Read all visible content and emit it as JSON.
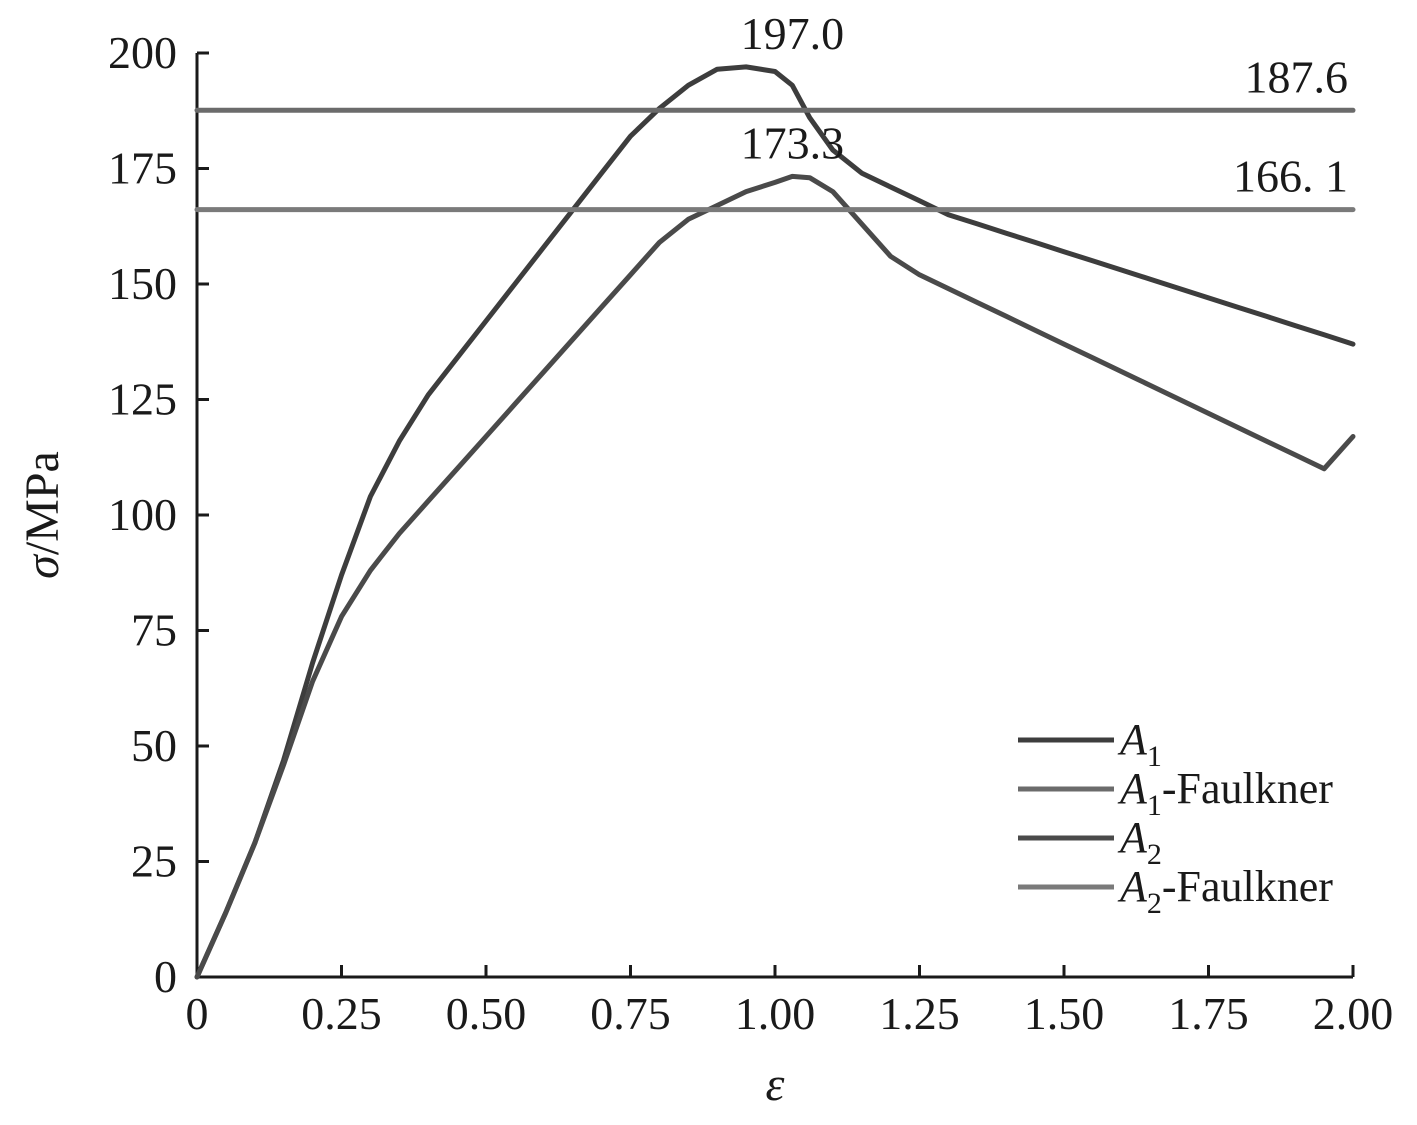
{
  "chart_data": {
    "type": "line",
    "xlabel": "ε",
    "ylabel": "σ/MPa",
    "xlim": [
      0,
      2.0
    ],
    "ylim": [
      0,
      200
    ],
    "x_ticks": [
      0,
      0.25,
      0.5,
      0.75,
      1.0,
      1.25,
      1.5,
      1.75,
      2.0
    ],
    "x_tick_labels": [
      "0",
      "0.25",
      "0.50",
      "0.75",
      "1.00",
      "1.25",
      "1.50",
      "1.75",
      "2.00"
    ],
    "y_ticks": [
      0,
      25,
      50,
      75,
      100,
      125,
      150,
      175,
      200
    ],
    "y_tick_labels": [
      "0",
      "25",
      "50",
      "75",
      "100",
      "125",
      "150",
      "175",
      "200"
    ],
    "grid": false,
    "legend_position": "bottom-right",
    "series": [
      {
        "name": "A1",
        "name_main": "A",
        "name_sub": "1",
        "name_suffix": "",
        "color": "#3d3d3d",
        "x": [
          0,
          0.05,
          0.1,
          0.15,
          0.2,
          0.25,
          0.3,
          0.35,
          0.4,
          0.45,
          0.5,
          0.55,
          0.6,
          0.65,
          0.7,
          0.75,
          0.8,
          0.85,
          0.9,
          0.95,
          1.0,
          1.03,
          1.06,
          1.1,
          1.15,
          1.2,
          1.25,
          1.3,
          1.35,
          1.4,
          1.45,
          1.5,
          1.55,
          1.6,
          1.65,
          1.7,
          1.75,
          1.8,
          1.85,
          1.9,
          1.95,
          2.0
        ],
        "y": [
          0,
          14,
          29,
          47,
          68,
          87,
          104,
          116,
          126,
          134,
          142,
          150,
          158,
          166,
          174,
          182,
          188,
          193,
          196.5,
          197,
          196,
          193,
          186,
          179,
          174,
          171,
          168,
          165,
          163,
          161,
          159,
          157,
          155,
          153,
          151,
          149,
          147,
          145,
          143,
          141,
          139,
          137
        ]
      },
      {
        "name": "A1-Faulkner",
        "name_main": "A",
        "name_sub": "1",
        "name_suffix": "-Faulkner",
        "color": "#6b6b6b",
        "x": [
          0,
          2.0
        ],
        "y": [
          187.6,
          187.6
        ]
      },
      {
        "name": "A2",
        "name_main": "A",
        "name_sub": "2",
        "name_suffix": "",
        "color": "#4a4a4a",
        "x": [
          0,
          0.05,
          0.1,
          0.15,
          0.2,
          0.25,
          0.3,
          0.35,
          0.4,
          0.45,
          0.5,
          0.55,
          0.6,
          0.65,
          0.7,
          0.75,
          0.8,
          0.85,
          0.9,
          0.95,
          1.0,
          1.03,
          1.06,
          1.1,
          1.15,
          1.2,
          1.25,
          1.3,
          1.35,
          1.4,
          1.45,
          1.5,
          1.55,
          1.6,
          1.65,
          1.7,
          1.75,
          1.8,
          1.85,
          1.9,
          1.95,
          2.0
        ],
        "y": [
          0,
          14,
          29,
          46,
          64,
          78,
          88,
          96,
          103,
          110,
          117,
          124,
          131,
          138,
          145,
          152,
          159,
          164,
          167,
          170,
          172,
          173.3,
          173,
          170,
          163,
          156,
          152,
          149,
          146,
          143,
          140,
          137,
          134,
          131,
          128,
          125,
          122,
          119,
          116,
          113,
          110,
          117
        ]
      },
      {
        "name": "A2-Faulkner",
        "name_main": "A",
        "name_sub": "2",
        "name_suffix": "-Faulkner",
        "color": "#7a7a7a",
        "x": [
          0,
          2.0
        ],
        "y": [
          166.1,
          166.1
        ]
      }
    ],
    "annotations": [
      {
        "text": "197.0",
        "x": 1.03,
        "y": 197.0,
        "anchor": "middle"
      },
      {
        "text": "173.3",
        "x": 1.03,
        "y": 173.3,
        "anchor": "middle"
      },
      {
        "text": "187.6",
        "x": 2.0,
        "y": 187.6,
        "anchor": "end"
      },
      {
        "text": "166. 1",
        "x": 2.0,
        "y": 166.1,
        "anchor": "end"
      }
    ]
  }
}
